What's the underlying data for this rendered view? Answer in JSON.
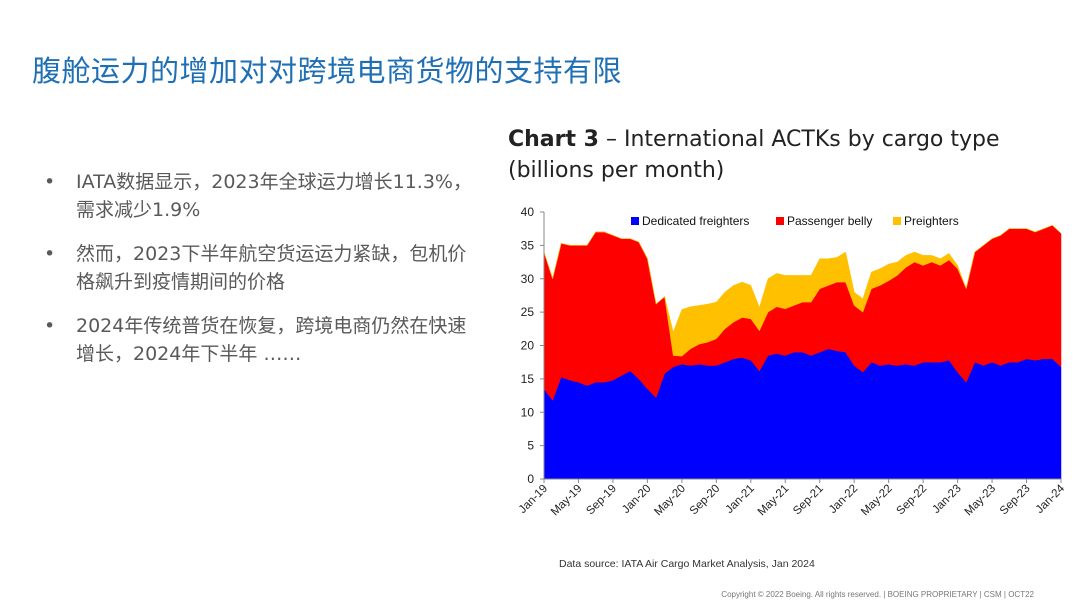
{
  "slide": {
    "title": "腹舱运力的增加对对跨境电商货物的支持有限",
    "bullets": [
      "IATA数据显示，2023年全球运力增长11.3%，需求减少1.9%",
      "然而，2023下半年航空货运运力紧缺，包机价格飙升到疫情期间的价格",
      "2024年传统普货在恢复，跨境电商仍然在快速增长，2024年下半年 ……"
    ],
    "bullet_marker": "•",
    "chart_title_bold": "Chart 3",
    "chart_title_rest": " – International ACTKs by cargo type (billions per month)",
    "source": "Data source: IATA Air Cargo Market Analysis, Jan 2024",
    "footer": "Copyright © 2022 Boeing. All rights reserved.  |  BOEING PROPRIETARY  |  CSM  |  OCT22"
  },
  "chart_data": {
    "type": "area",
    "stacked": true,
    "title": "International ACTKs by cargo type (billions per month)",
    "xlabel": "",
    "ylabel": "",
    "ylim": [
      0,
      40
    ],
    "yticks": [
      0,
      5,
      10,
      15,
      20,
      25,
      30,
      35,
      40
    ],
    "xtick_labels": [
      "Jan-19",
      "May-19",
      "Sep-19",
      "Jan-20",
      "May-20",
      "Sep-20",
      "Jan-21",
      "May-21",
      "Sep-21",
      "Jan-22",
      "May-22",
      "Sep-22",
      "Jan-23",
      "May-23",
      "Sep-23",
      "Jan-24"
    ],
    "legend_position": "top",
    "colors": {
      "Dedicated freighters": "#0000ff",
      "Passenger belly": "#ff0000",
      "Preighters": "#ffc000"
    },
    "x": [
      "Jan-19",
      "Feb-19",
      "Mar-19",
      "Apr-19",
      "May-19",
      "Jun-19",
      "Jul-19",
      "Aug-19",
      "Sep-19",
      "Oct-19",
      "Nov-19",
      "Dec-19",
      "Jan-20",
      "Feb-20",
      "Mar-20",
      "Apr-20",
      "May-20",
      "Jun-20",
      "Jul-20",
      "Aug-20",
      "Sep-20",
      "Oct-20",
      "Nov-20",
      "Dec-20",
      "Jan-21",
      "Feb-21",
      "Mar-21",
      "Apr-21",
      "May-21",
      "Jun-21",
      "Jul-21",
      "Aug-21",
      "Sep-21",
      "Oct-21",
      "Nov-21",
      "Dec-21",
      "Jan-22",
      "Feb-22",
      "Mar-22",
      "Apr-22",
      "May-22",
      "Jun-22",
      "Jul-22",
      "Aug-22",
      "Sep-22",
      "Oct-22",
      "Nov-22",
      "Dec-22",
      "Jan-23",
      "Feb-23",
      "Mar-23",
      "Apr-23",
      "May-23",
      "Jun-23",
      "Jul-23",
      "Aug-23",
      "Sep-23",
      "Oct-23",
      "Nov-23",
      "Dec-23",
      "Jan-24"
    ],
    "series": [
      {
        "name": "Dedicated freighters",
        "values": [
          13.5,
          11.8,
          15.3,
          14.8,
          14.5,
          14.0,
          14.5,
          14.5,
          14.8,
          15.5,
          16.2,
          15.0,
          13.5,
          12.2,
          15.8,
          16.8,
          17.2,
          17.0,
          17.2,
          17.0,
          17.0,
          17.5,
          18.0,
          18.2,
          17.8,
          16.2,
          18.5,
          18.8,
          18.5,
          19.0,
          19.0,
          18.5,
          19.0,
          19.5,
          19.2,
          19.0,
          17.0,
          16.0,
          17.5,
          17.0,
          17.2,
          17.0,
          17.2,
          17.0,
          17.5,
          17.5,
          17.5,
          17.8,
          16.0,
          14.5,
          17.5,
          17.0,
          17.5,
          17.0,
          17.5,
          17.5,
          18.0,
          17.8,
          18.0,
          18.0,
          16.8
        ]
      },
      {
        "name": "Passenger belly",
        "values": [
          20.5,
          18.2,
          20.0,
          20.2,
          20.5,
          21.0,
          22.5,
          22.5,
          21.7,
          20.5,
          19.8,
          20.5,
          19.5,
          14.0,
          11.5,
          1.7,
          1.2,
          2.5,
          3.0,
          3.5,
          4.0,
          5.0,
          5.5,
          6.0,
          6.2,
          6.0,
          6.5,
          7.0,
          7.0,
          7.0,
          7.5,
          8.0,
          9.5,
          9.5,
          10.3,
          10.5,
          9.0,
          9.0,
          11.0,
          12.0,
          12.5,
          13.5,
          14.5,
          15.5,
          14.5,
          15.0,
          14.5,
          15.0,
          15.5,
          14.0,
          16.5,
          18.0,
          18.5,
          19.5,
          20.0,
          20.0,
          19.5,
          19.2,
          19.5,
          20.0,
          20.0
        ]
      },
      {
        "name": "Preighters",
        "values": [
          0,
          0,
          0,
          0,
          0,
          0,
          0,
          0,
          0,
          0,
          0,
          0,
          0,
          0,
          0,
          3.5,
          7.0,
          6.3,
          5.8,
          5.7,
          5.5,
          5.5,
          5.5,
          5.3,
          5.0,
          3.5,
          5.0,
          5.0,
          5.0,
          4.5,
          4.0,
          4.0,
          4.5,
          4.0,
          3.7,
          4.5,
          2.0,
          2.0,
          2.5,
          2.5,
          2.5,
          2.0,
          1.8,
          1.5,
          1.5,
          1.0,
          1.0,
          1.0,
          0.5,
          0,
          0,
          0,
          0,
          0,
          0,
          0,
          0,
          0,
          0,
          0,
          0
        ]
      }
    ]
  }
}
